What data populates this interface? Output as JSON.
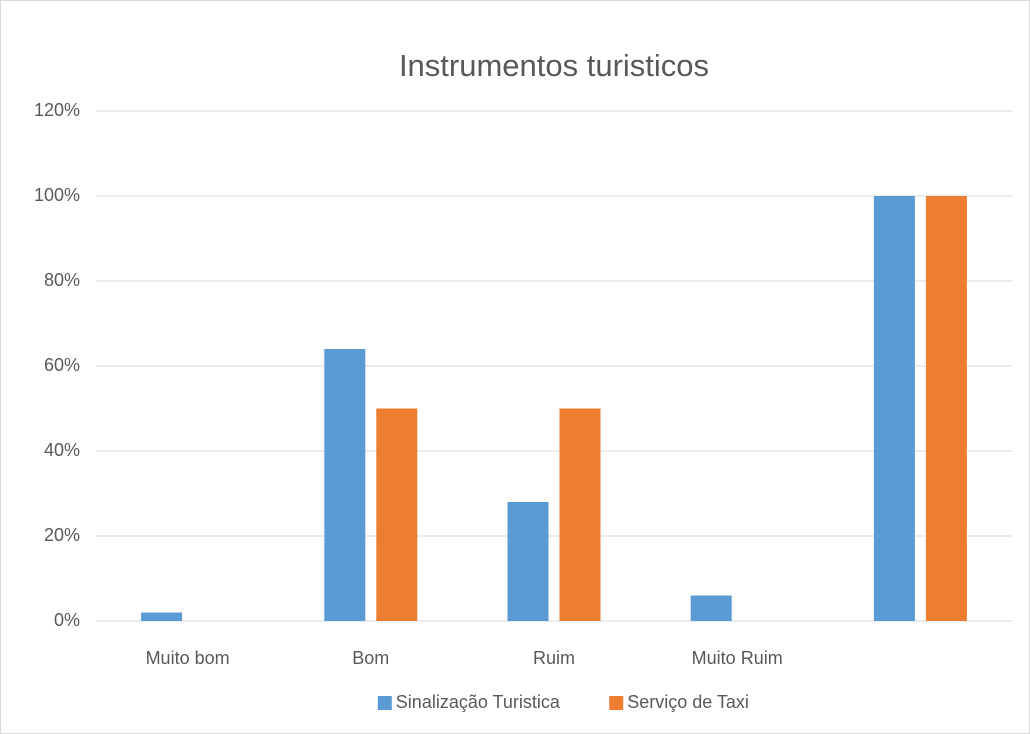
{
  "chart_data": {
    "type": "bar",
    "title": "Instrumentos turisticos",
    "categories": [
      "Muito bom",
      "Bom",
      "Ruim",
      "Muito Ruim",
      null
    ],
    "series": [
      {
        "name": "Sinalização Turistica",
        "color": "#5b9bd5",
        "values": [
          2,
          64,
          28,
          6,
          100
        ]
      },
      {
        "name": "Serviço de Taxi",
        "color": "#ed7d31",
        "values": [
          0,
          50,
          50,
          0,
          100
        ]
      }
    ],
    "ylim": [
      0,
      120
    ],
    "yticks": [
      {
        "value": 0,
        "label": "0%"
      },
      {
        "value": 20,
        "label": "20%"
      },
      {
        "value": 40,
        "label": "40%"
      },
      {
        "value": 60,
        "label": "60%"
      },
      {
        "value": 80,
        "label": "80%"
      },
      {
        "value": 100,
        "label": "100%"
      },
      {
        "value": 120,
        "label": "120%"
      }
    ],
    "grid": true,
    "legend": "bottom"
  }
}
